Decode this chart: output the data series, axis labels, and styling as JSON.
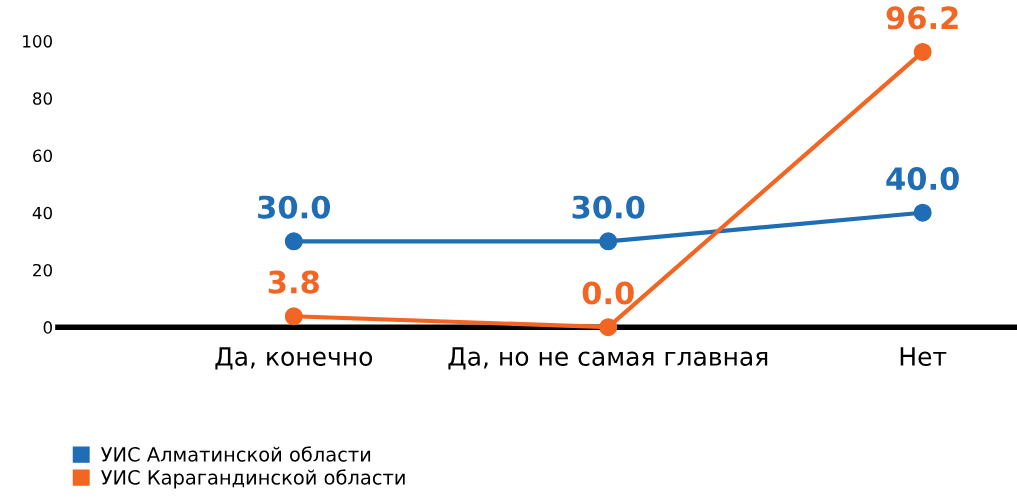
{
  "chart_data": {
    "type": "line",
    "categories": [
      "Да, конечно",
      "Да, но не самая главная",
      "Нет"
    ],
    "series": [
      {
        "name": "УИС Алматинской области",
        "color": "#1f6db5",
        "values": [
          30.0,
          30.0,
          40.0
        ],
        "value_labels": [
          "30.0",
          "30.0",
          "40.0"
        ]
      },
      {
        "name": "УИС Карагандинской области",
        "color": "#f26522",
        "values": [
          3.8,
          0.0,
          96.2
        ],
        "value_labels": [
          "3.8",
          "0.0",
          "96.2"
        ]
      }
    ],
    "ylim": [
      0,
      100
    ],
    "yticks": [
      0,
      20,
      40,
      60,
      80,
      100
    ],
    "marker": "circle",
    "line_style": "solid",
    "grid": false,
    "legend": "bottom left"
  }
}
